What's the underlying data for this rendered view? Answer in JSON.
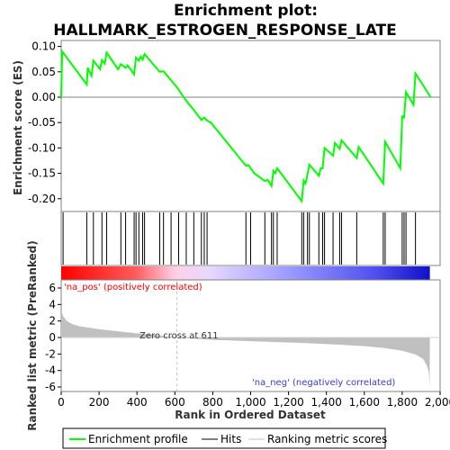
{
  "chart_data": {
    "type": "line",
    "title_lines": [
      "Enrichment plot:",
      "HALLMARK_ESTROGEN_RESPONSE_LATE"
    ],
    "top_panel": {
      "ylabel": "Enrichment score (ES)",
      "ylim": [
        -0.22,
        0.1
      ],
      "yticks": [
        "0.10",
        "0.05",
        "0.00",
        "-0.05",
        "-0.10",
        "-0.15",
        "-0.20"
      ],
      "ytick_values": [
        0.1,
        0.05,
        0.0,
        -0.05,
        -0.1,
        -0.15,
        -0.2
      ],
      "series_name": "Enrichment profile",
      "color": "#00ff00",
      "points": [
        [
          0,
          0.0
        ],
        [
          5,
          0.09
        ],
        [
          135,
          0.025
        ],
        [
          140,
          0.058
        ],
        [
          160,
          0.042
        ],
        [
          170,
          0.072
        ],
        [
          205,
          0.055
        ],
        [
          215,
          0.073
        ],
        [
          230,
          0.066
        ],
        [
          240,
          0.088
        ],
        [
          300,
          0.055
        ],
        [
          315,
          0.065
        ],
        [
          340,
          0.058
        ],
        [
          350,
          0.063
        ],
        [
          385,
          0.045
        ],
        [
          395,
          0.078
        ],
        [
          410,
          0.072
        ],
        [
          420,
          0.08
        ],
        [
          430,
          0.074
        ],
        [
          440,
          0.085
        ],
        [
          520,
          0.05
        ],
        [
          540,
          0.051
        ],
        [
          610,
          0.02
        ],
        [
          660,
          -0.007
        ],
        [
          700,
          -0.025
        ],
        [
          740,
          -0.045
        ],
        [
          755,
          -0.04
        ],
        [
          770,
          -0.046
        ],
        [
          790,
          -0.05
        ],
        [
          975,
          -0.135
        ],
        [
          990,
          -0.134
        ],
        [
          1000,
          -0.14
        ],
        [
          1020,
          -0.15
        ],
        [
          1075,
          -0.165
        ],
        [
          1090,
          -0.163
        ],
        [
          1110,
          -0.175
        ],
        [
          1120,
          -0.145
        ],
        [
          1130,
          -0.15
        ],
        [
          1140,
          -0.14
        ],
        [
          1270,
          -0.205
        ],
        [
          1280,
          -0.164
        ],
        [
          1290,
          -0.17
        ],
        [
          1300,
          -0.152
        ],
        [
          1310,
          -0.133
        ],
        [
          1360,
          -0.155
        ],
        [
          1370,
          -0.14
        ],
        [
          1380,
          -0.14
        ],
        [
          1390,
          -0.1
        ],
        [
          1435,
          -0.115
        ],
        [
          1445,
          -0.09
        ],
        [
          1470,
          -0.102
        ],
        [
          1480,
          -0.085
        ],
        [
          1560,
          -0.12
        ],
        [
          1570,
          -0.098
        ],
        [
          1700,
          -0.17
        ],
        [
          1710,
          -0.088
        ],
        [
          1790,
          -0.14
        ],
        [
          1800,
          -0.038
        ],
        [
          1810,
          -0.04
        ],
        [
          1820,
          0.01
        ],
        [
          1860,
          -0.015
        ],
        [
          1870,
          0.047
        ],
        [
          1950,
          0.0
        ]
      ]
    },
    "hits": [
      10,
      135,
      170,
      215,
      240,
      315,
      340,
      385,
      395,
      410,
      430,
      440,
      520,
      540,
      580,
      620,
      660,
      700,
      740,
      755,
      770,
      975,
      1000,
      1075,
      1110,
      1120,
      1140,
      1270,
      1280,
      1300,
      1310,
      1360,
      1380,
      1390,
      1435,
      1470,
      1480,
      1560,
      1700,
      1710,
      1800,
      1810,
      1820,
      1870
    ],
    "bottom_panel": {
      "ylabel": "Ranked list metric (PreRanked)",
      "ylim": [
        -6,
        6
      ],
      "yticks": [
        "6",
        "4",
        "2",
        "0",
        "-2",
        "-4",
        "-6"
      ],
      "ytick_values": [
        6,
        4,
        2,
        0,
        -2,
        -4,
        -6
      ],
      "series_name": "Ranking metric scores",
      "profile": [
        [
          0,
          3.3
        ],
        [
          10,
          2.6
        ],
        [
          30,
          2.0
        ],
        [
          60,
          1.6
        ],
        [
          100,
          1.35
        ],
        [
          200,
          1.0
        ],
        [
          300,
          0.75
        ],
        [
          400,
          0.5
        ],
        [
          500,
          0.28
        ],
        [
          600,
          0.05
        ],
        [
          611,
          0.0
        ],
        [
          700,
          -0.15
        ],
        [
          800,
          -0.28
        ],
        [
          1000,
          -0.45
        ],
        [
          1200,
          -0.6
        ],
        [
          1400,
          -0.78
        ],
        [
          1600,
          -1.05
        ],
        [
          1700,
          -1.25
        ],
        [
          1800,
          -1.6
        ],
        [
          1870,
          -2.05
        ],
        [
          1910,
          -2.6
        ],
        [
          1930,
          -3.4
        ],
        [
          1940,
          -4.2
        ],
        [
          1945,
          -5.8
        ],
        [
          1946,
          0.0
        ]
      ],
      "annotations": {
        "pos": "'na_pos' (positively correlated)",
        "neg": "'na_neg' (negatively correlated)",
        "zero_cross": "Zero cross at 611"
      }
    },
    "xaxis": {
      "label": "Rank in Ordered Dataset",
      "xlim": [
        0,
        2000
      ],
      "ticks": [
        "0",
        "200",
        "400",
        "600",
        "800",
        "1,000",
        "1,200",
        "1,400",
        "1,600",
        "1,800",
        "2,000"
      ],
      "tick_values": [
        0,
        200,
        400,
        600,
        800,
        1000,
        1200,
        1400,
        1600,
        1800,
        2000
      ],
      "n_genes": 1946,
      "zero_cross": 611
    },
    "legend": {
      "position": "bottom",
      "items": [
        {
          "label": "Enrichment profile",
          "color": "#00ff00"
        },
        {
          "label": "Hits",
          "color": "#000000"
        },
        {
          "label": "Ranking metric scores",
          "color": "#c0c0c0"
        }
      ]
    }
  }
}
